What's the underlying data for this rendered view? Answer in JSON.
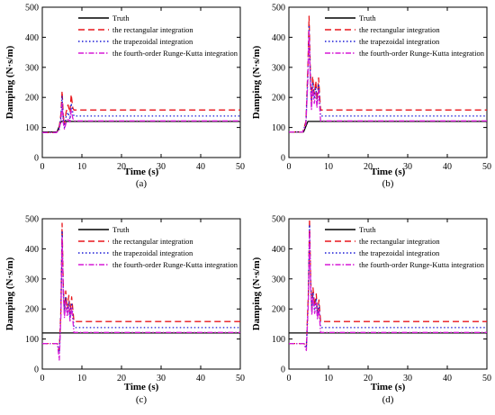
{
  "chart_data": [
    {
      "id": "a",
      "type": "line",
      "label": "(a)",
      "xlabel": "Time (s)",
      "ylabel": "Damping (N·s/m)",
      "xlim": [
        0,
        50
      ],
      "ylim": [
        0,
        500
      ],
      "xticks": [
        "0",
        "10",
        "20",
        "30",
        "40",
        "50"
      ],
      "yticks": [
        "0",
        "100",
        "200",
        "300",
        "400",
        "500"
      ],
      "legend_position": "top-right",
      "series": [
        {
          "name": "Truth",
          "color": "#000000",
          "dash": "solid",
          "x": [
            0,
            3.7,
            4.8,
            50
          ],
          "y": [
            85,
            85,
            120,
            120
          ]
        },
        {
          "name": "the rectangular integration",
          "color": "#e8161b",
          "dash": "long-dash",
          "x": [
            0,
            3.5,
            4.2,
            4.7,
            5.0,
            5.3,
            5.6,
            6.0,
            6.5,
            7.0,
            7.3,
            7.7,
            8.0,
            50
          ],
          "y": [
            83,
            83,
            95,
            145,
            222,
            140,
            110,
            150,
            175,
            150,
            210,
            165,
            158,
            158
          ]
        },
        {
          "name": "the trapezoidal integration",
          "color": "#1a1ad6",
          "dash": "dot",
          "x": [
            0,
            3.5,
            4.2,
            4.7,
            5.0,
            5.3,
            5.6,
            6.0,
            6.5,
            7.0,
            7.3,
            7.7,
            8.0,
            50
          ],
          "y": [
            83,
            83,
            92,
            135,
            205,
            125,
            100,
            135,
            150,
            128,
            180,
            150,
            138,
            138
          ]
        },
        {
          "name": "the fourth-order Runge-Kutta integration",
          "color": "#d61ad6",
          "dash": "dash-dot",
          "x": [
            0,
            3.5,
            4.2,
            4.7,
            5.0,
            5.3,
            5.6,
            6.0,
            6.5,
            7.0,
            7.3,
            7.7,
            8.0,
            50
          ],
          "y": [
            83,
            83,
            88,
            125,
            180,
            115,
            95,
            115,
            130,
            118,
            160,
            130,
            122,
            122
          ]
        }
      ]
    },
    {
      "id": "b",
      "type": "line",
      "label": "(b)",
      "xlabel": "Time (s)",
      "ylabel": "Damping (N·s/m)",
      "xlim": [
        0,
        50
      ],
      "ylim": [
        0,
        500
      ],
      "xticks": [
        "0",
        "10",
        "20",
        "30",
        "40",
        "50"
      ],
      "yticks": [
        "0",
        "100",
        "200",
        "300",
        "400",
        "500"
      ],
      "legend_position": "top-right",
      "series": [
        {
          "name": "Truth",
          "color": "#000000",
          "dash": "solid",
          "x": [
            0,
            3.7,
            4.8,
            50
          ],
          "y": [
            85,
            85,
            120,
            120
          ]
        },
        {
          "name": "the rectangular integration",
          "color": "#e8161b",
          "dash": "long-dash",
          "x": [
            0,
            3.5,
            4.3,
            4.8,
            5.1,
            5.4,
            5.7,
            6.0,
            6.4,
            6.8,
            7.1,
            7.5,
            8.0,
            50
          ],
          "y": [
            85,
            85,
            120,
            300,
            470,
            290,
            180,
            270,
            210,
            255,
            190,
            265,
            158,
            158
          ]
        },
        {
          "name": "the trapezoidal integration",
          "color": "#1a1ad6",
          "dash": "dot",
          "x": [
            0,
            3.5,
            4.3,
            4.8,
            5.1,
            5.4,
            5.7,
            6.0,
            6.4,
            6.8,
            7.1,
            7.5,
            8.0,
            50
          ],
          "y": [
            85,
            85,
            115,
            280,
            440,
            270,
            170,
            250,
            195,
            235,
            175,
            245,
            138,
            138
          ]
        },
        {
          "name": "the fourth-order Runge-Kutta integration",
          "color": "#d61ad6",
          "dash": "dash-dot",
          "x": [
            0,
            3.5,
            4.3,
            4.8,
            5.1,
            5.4,
            5.7,
            6.0,
            6.4,
            6.8,
            7.1,
            7.5,
            8.0,
            50
          ],
          "y": [
            85,
            85,
            110,
            260,
            420,
            250,
            160,
            230,
            180,
            215,
            165,
            225,
            122,
            122
          ]
        }
      ]
    },
    {
      "id": "c",
      "type": "line",
      "label": "(c)",
      "xlabel": "Time (s)",
      "ylabel": "Damping (N·s/m)",
      "xlim": [
        0,
        50
      ],
      "ylim": [
        0,
        500
      ],
      "xticks": [
        "0",
        "10",
        "20",
        "30",
        "40",
        "50"
      ],
      "yticks": [
        "0",
        "100",
        "200",
        "300",
        "400",
        "500"
      ],
      "legend_position": "top-right",
      "series": [
        {
          "name": "Truth",
          "color": "#000000",
          "dash": "solid",
          "x": [
            0,
            50
          ],
          "y": [
            120,
            120
          ]
        },
        {
          "name": "the rectangular integration",
          "color": "#e8161b",
          "dash": "long-dash",
          "x": [
            0,
            3.8,
            4.3,
            4.7,
            5.0,
            5.3,
            5.6,
            5.9,
            6.3,
            6.7,
            7.0,
            7.4,
            8.0,
            50
          ],
          "y": [
            85,
            85,
            60,
            200,
            485,
            280,
            190,
            260,
            200,
            245,
            180,
            240,
            158,
            158
          ]
        },
        {
          "name": "the trapezoidal integration",
          "color": "#1a1ad6",
          "dash": "dot",
          "x": [
            0,
            3.8,
            4.3,
            4.7,
            5.0,
            5.3,
            5.6,
            5.9,
            6.3,
            6.7,
            7.0,
            7.4,
            8.0,
            50
          ],
          "y": [
            85,
            85,
            55,
            190,
            460,
            265,
            180,
            240,
            185,
            225,
            170,
            220,
            138,
            138
          ]
        },
        {
          "name": "the fourth-order Runge-Kutta integration",
          "color": "#d61ad6",
          "dash": "dash-dot",
          "x": [
            0,
            3.8,
            4.3,
            4.7,
            5.0,
            5.3,
            5.6,
            5.9,
            6.3,
            6.7,
            7.0,
            7.4,
            8.0,
            50
          ],
          "y": [
            85,
            85,
            30,
            180,
            440,
            250,
            170,
            225,
            175,
            210,
            160,
            205,
            122,
            122
          ]
        }
      ]
    },
    {
      "id": "d",
      "type": "line",
      "label": "(d)",
      "xlabel": "Time (s)",
      "ylabel": "Damping (N·s/m)",
      "xlim": [
        0,
        50
      ],
      "ylim": [
        0,
        500
      ],
      "xticks": [
        "0",
        "10",
        "20",
        "30",
        "40",
        "50"
      ],
      "yticks": [
        "0",
        "100",
        "200",
        "300",
        "400",
        "500"
      ],
      "legend_position": "top-right",
      "series": [
        {
          "name": "Truth",
          "color": "#000000",
          "dash": "solid",
          "x": [
            0,
            50
          ],
          "y": [
            120,
            120
          ]
        },
        {
          "name": "the rectangular integration",
          "color": "#e8161b",
          "dash": "long-dash",
          "x": [
            0,
            3.8,
            4.4,
            4.9,
            5.2,
            5.5,
            5.8,
            6.1,
            6.5,
            6.9,
            7.2,
            7.6,
            8.0,
            50
          ],
          "y": [
            85,
            85,
            75,
            250,
            500,
            300,
            200,
            270,
            210,
            250,
            185,
            230,
            158,
            158
          ]
        },
        {
          "name": "the trapezoidal integration",
          "color": "#1a1ad6",
          "dash": "dot",
          "x": [
            0,
            3.8,
            4.4,
            4.9,
            5.2,
            5.5,
            5.8,
            6.1,
            6.5,
            6.9,
            7.2,
            7.6,
            8.0,
            50
          ],
          "y": [
            85,
            85,
            70,
            235,
            480,
            285,
            190,
            255,
            195,
            235,
            175,
            215,
            138,
            138
          ]
        },
        {
          "name": "the fourth-order Runge-Kutta integration",
          "color": "#d61ad6",
          "dash": "dash-dot",
          "x": [
            0,
            3.8,
            4.4,
            4.9,
            5.2,
            5.5,
            5.8,
            6.1,
            6.5,
            6.9,
            7.2,
            7.6,
            8.0,
            50
          ],
          "y": [
            85,
            85,
            62,
            220,
            460,
            270,
            180,
            240,
            185,
            220,
            165,
            200,
            122,
            122
          ]
        }
      ]
    }
  ]
}
